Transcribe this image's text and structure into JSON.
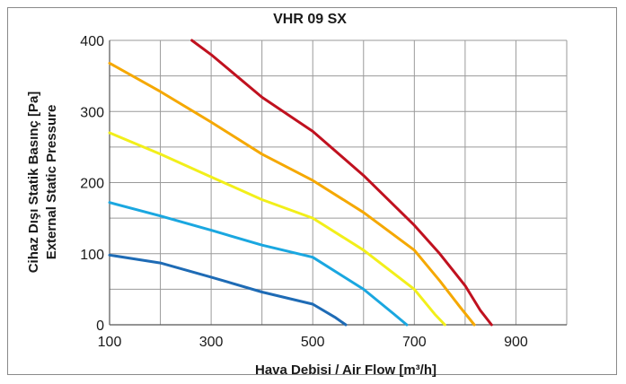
{
  "chart_data": {
    "type": "line",
    "title": "VHR 09 SX",
    "xlabel": "Hava Debisi / Air Flow [m³/h]",
    "ylabel_lines": [
      "Cihaz Dışı Statik Basınç [Pa]",
      "External Static Pressure"
    ],
    "xlim": [
      100,
      1000
    ],
    "ylim": [
      0,
      400
    ],
    "x_ticks": [
      100,
      300,
      500,
      700,
      900
    ],
    "y_ticks": [
      0,
      100,
      200,
      300,
      400
    ],
    "x_grid_step": 100,
    "y_grid_step": 50,
    "grid": true,
    "series": [
      {
        "color": "#c0111f",
        "points": [
          [
            262,
            400
          ],
          [
            300,
            380
          ],
          [
            400,
            320
          ],
          [
            500,
            272
          ],
          [
            600,
            210
          ],
          [
            700,
            140
          ],
          [
            750,
            100
          ],
          [
            800,
            55
          ],
          [
            830,
            20
          ],
          [
            852,
            0
          ]
        ]
      },
      {
        "color": "#f5a800",
        "points": [
          [
            100,
            368
          ],
          [
            200,
            328
          ],
          [
            300,
            285
          ],
          [
            400,
            240
          ],
          [
            500,
            203
          ],
          [
            600,
            158
          ],
          [
            700,
            105
          ],
          [
            750,
            62
          ],
          [
            790,
            25
          ],
          [
            818,
            0
          ]
        ]
      },
      {
        "color": "#f2ef1a",
        "points": [
          [
            100,
            270
          ],
          [
            200,
            240
          ],
          [
            300,
            208
          ],
          [
            400,
            176
          ],
          [
            500,
            150
          ],
          [
            600,
            105
          ],
          [
            700,
            50
          ],
          [
            740,
            15
          ],
          [
            760,
            0
          ]
        ]
      },
      {
        "color": "#1aa7e0",
        "points": [
          [
            100,
            172
          ],
          [
            200,
            153
          ],
          [
            300,
            133
          ],
          [
            400,
            112
          ],
          [
            500,
            95
          ],
          [
            600,
            50
          ],
          [
            660,
            15
          ],
          [
            685,
            0
          ]
        ]
      },
      {
        "color": "#1e6bb5",
        "points": [
          [
            100,
            98
          ],
          [
            200,
            87
          ],
          [
            300,
            67
          ],
          [
            400,
            46
          ],
          [
            500,
            29
          ],
          [
            545,
            10
          ],
          [
            565,
            0
          ]
        ]
      }
    ]
  }
}
